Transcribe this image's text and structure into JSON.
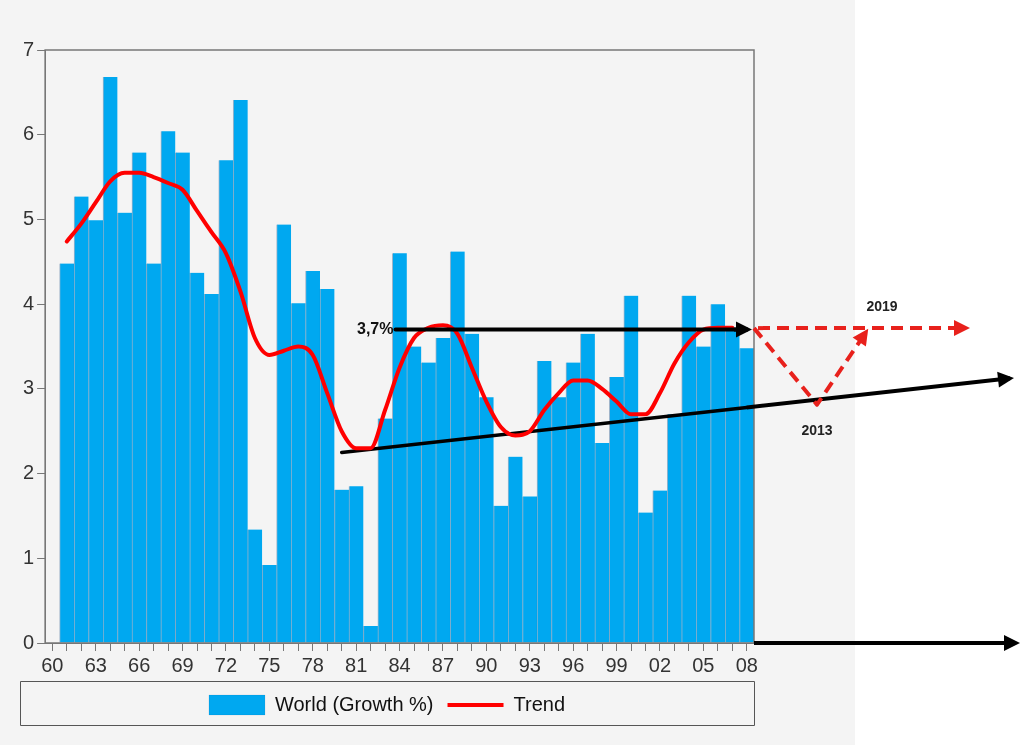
{
  "chart_data": {
    "type": "bar",
    "categories": [
      "60",
      null,
      null,
      "63",
      null,
      null,
      "66",
      null,
      null,
      "69",
      null,
      null,
      "72",
      null,
      null,
      "75",
      null,
      null,
      "78",
      null,
      null,
      "81",
      null,
      null,
      "84",
      null,
      null,
      "87",
      null,
      null,
      "90",
      null,
      null,
      "93",
      null,
      null,
      "96",
      null,
      null,
      "99",
      null,
      null,
      "02",
      null,
      null,
      "05",
      null,
      null,
      "08"
    ],
    "series": [
      {
        "name": "World (Growth %)",
        "color": "#00a8f0",
        "values": [
          null,
          4.48,
          5.27,
          4.99,
          6.68,
          5.08,
          5.79,
          4.48,
          6.04,
          5.79,
          4.37,
          4.12,
          5.7,
          6.41,
          1.34,
          0.92,
          4.94,
          4.01,
          4.39,
          4.18,
          1.81,
          1.85,
          0.2,
          2.65,
          4.6,
          3.5,
          3.31,
          3.6,
          4.62,
          3.65,
          2.9,
          1.62,
          2.2,
          1.73,
          3.33,
          2.9,
          3.31,
          3.65,
          2.36,
          3.14,
          4.1,
          1.54,
          1.8,
          2.7,
          4.1,
          3.5,
          4.0,
          3.7,
          3.48
        ]
      },
      {
        "name": "Trend",
        "type": "line",
        "color": "#ff0000",
        "values": [
          null,
          4.74,
          4.95,
          5.2,
          5.45,
          5.55,
          5.55,
          5.5,
          5.43,
          5.35,
          5.1,
          4.85,
          4.6,
          4.15,
          3.6,
          3.4,
          3.45,
          3.5,
          3.4,
          2.95,
          2.5,
          2.3,
          2.3,
          2.75,
          3.25,
          3.6,
          3.72,
          3.75,
          3.65,
          3.25,
          2.85,
          2.55,
          2.45,
          2.5,
          2.75,
          2.95,
          3.1,
          3.1,
          3.0,
          2.85,
          2.7,
          2.7,
          2.95,
          3.3,
          3.55,
          3.7,
          3.72,
          3.72,
          null
        ]
      },
      {
        "type": "line",
        "color": "#000000",
        "values": [
          null,
          null,
          null,
          null,
          null,
          null,
          null,
          null,
          null,
          null,
          null,
          null,
          null,
          null,
          null,
          null,
          null,
          null,
          null,
          null,
          2.25,
          null,
          null,
          null,
          null,
          null,
          null,
          null,
          null,
          null,
          null,
          null,
          null,
          null,
          null,
          null,
          null,
          null,
          null,
          null,
          null,
          null,
          null,
          null,
          null,
          null,
          null,
          null,
          2.78
        ]
      }
    ],
    "ref_lines": [
      {
        "axis": "y",
        "value": 3.7,
        "label": "3,7%",
        "color": "#000000"
      }
    ],
    "ylim": [
      0,
      7
    ],
    "yticks": [
      0,
      1,
      2,
      3,
      4,
      5,
      6,
      7
    ],
    "grid": false,
    "legend": "bottom",
    "marker": "none",
    "annotations": [
      "2013",
      "2019"
    ]
  }
}
